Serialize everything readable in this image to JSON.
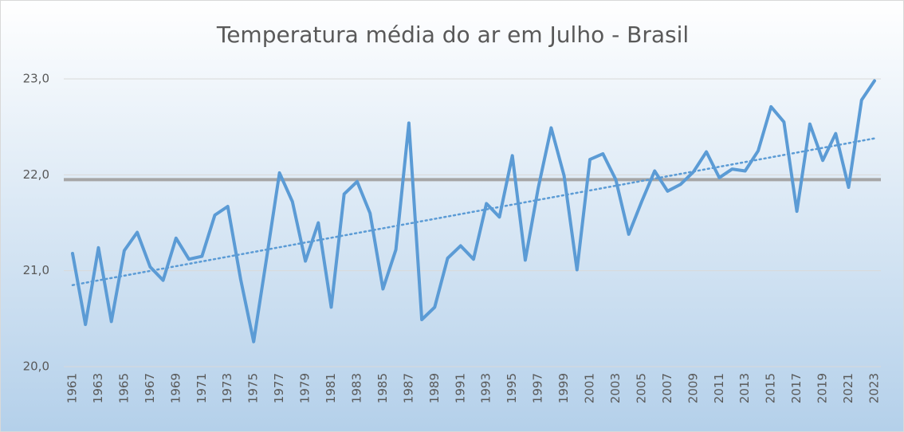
{
  "chart_data": {
    "type": "line",
    "title": "Temperatura média do ar em Julho - Brasil",
    "categories": [
      "1961",
      null,
      "1963",
      null,
      "1965",
      null,
      "1967",
      null,
      "1969",
      null,
      "1971",
      null,
      "1973",
      null,
      "1975",
      null,
      "1977",
      null,
      "1979",
      null,
      "1981",
      null,
      "1983",
      null,
      "1985",
      null,
      "1987",
      null,
      "1989",
      null,
      "1991",
      null,
      "1993",
      null,
      "1995",
      null,
      "1997",
      null,
      "1999",
      null,
      "2001",
      null,
      "2003",
      null,
      "2005",
      null,
      "2007",
      null,
      "2009",
      null,
      "2011",
      null,
      "2013",
      null,
      "2015",
      null,
      "2017",
      null,
      "2019",
      null,
      "2021",
      null,
      "2023"
    ],
    "values": [
      21.18,
      20.44,
      21.24,
      20.47,
      21.21,
      21.4,
      21.04,
      20.9,
      21.34,
      21.12,
      21.15,
      21.58,
      21.67,
      20.91,
      20.26,
      21.13,
      22.02,
      21.72,
      21.1,
      21.5,
      20.62,
      21.8,
      21.93,
      21.6,
      20.81,
      21.22,
      22.54,
      20.49,
      20.62,
      21.13,
      21.26,
      21.12,
      21.7,
      21.56,
      22.2,
      21.11,
      21.86,
      22.49,
      21.99,
      21.01,
      22.16,
      22.22,
      21.95,
      21.38,
      21.72,
      22.04,
      21.83,
      21.9,
      22.03,
      22.24,
      21.97,
      22.06,
      22.04,
      22.25,
      22.71,
      22.55,
      21.62,
      22.53,
      22.15,
      22.43,
      21.87,
      22.78,
      22.98
    ],
    "color": "#5b9bd5",
    "average_line": {
      "value": 21.95,
      "color": "#a6a6a6"
    },
    "trendline": {
      "start": 20.85,
      "end": 22.38,
      "color": "#5b9bd5",
      "style": "dotted"
    },
    "ylim": [
      20,
      23
    ],
    "yticks": [
      {
        "value": 20,
        "label": "20,0"
      },
      {
        "value": 21,
        "label": "21,0"
      },
      {
        "value": 22,
        "label": "22,0"
      },
      {
        "value": 23,
        "label": "23,0"
      }
    ],
    "grid": true
  }
}
